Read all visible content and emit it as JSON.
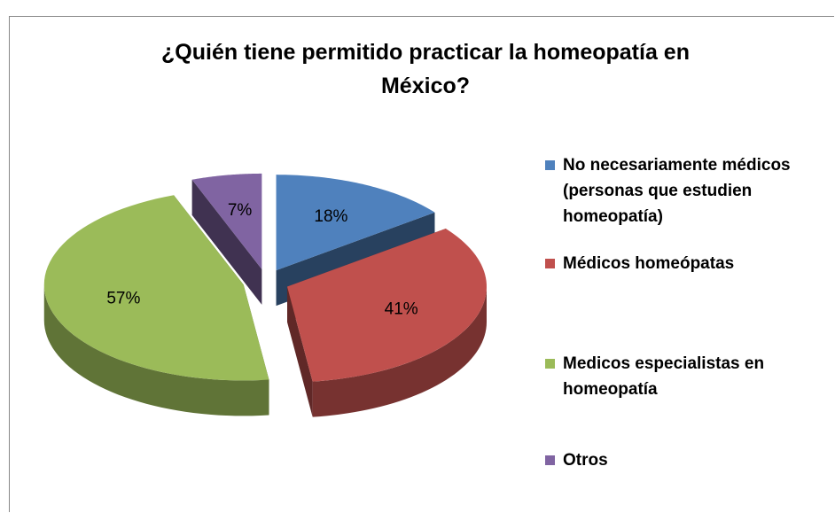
{
  "chart_data": {
    "type": "pie",
    "title": "¿Quién tiene permitido practicar la homeopatía en México?",
    "categories": [
      "No necesariamente médicos (personas que estudien homeopatía)",
      "Médicos homeópatas",
      "Medicos especialistas en homeopatía",
      "Otros"
    ],
    "values": [
      18,
      41,
      57,
      7
    ],
    "value_labels": [
      "18%",
      "41%",
      "57%",
      "7%"
    ],
    "colors": [
      "#4f81bd",
      "#c0504d",
      "#9bbb59",
      "#8064a2"
    ],
    "legend": "right"
  }
}
